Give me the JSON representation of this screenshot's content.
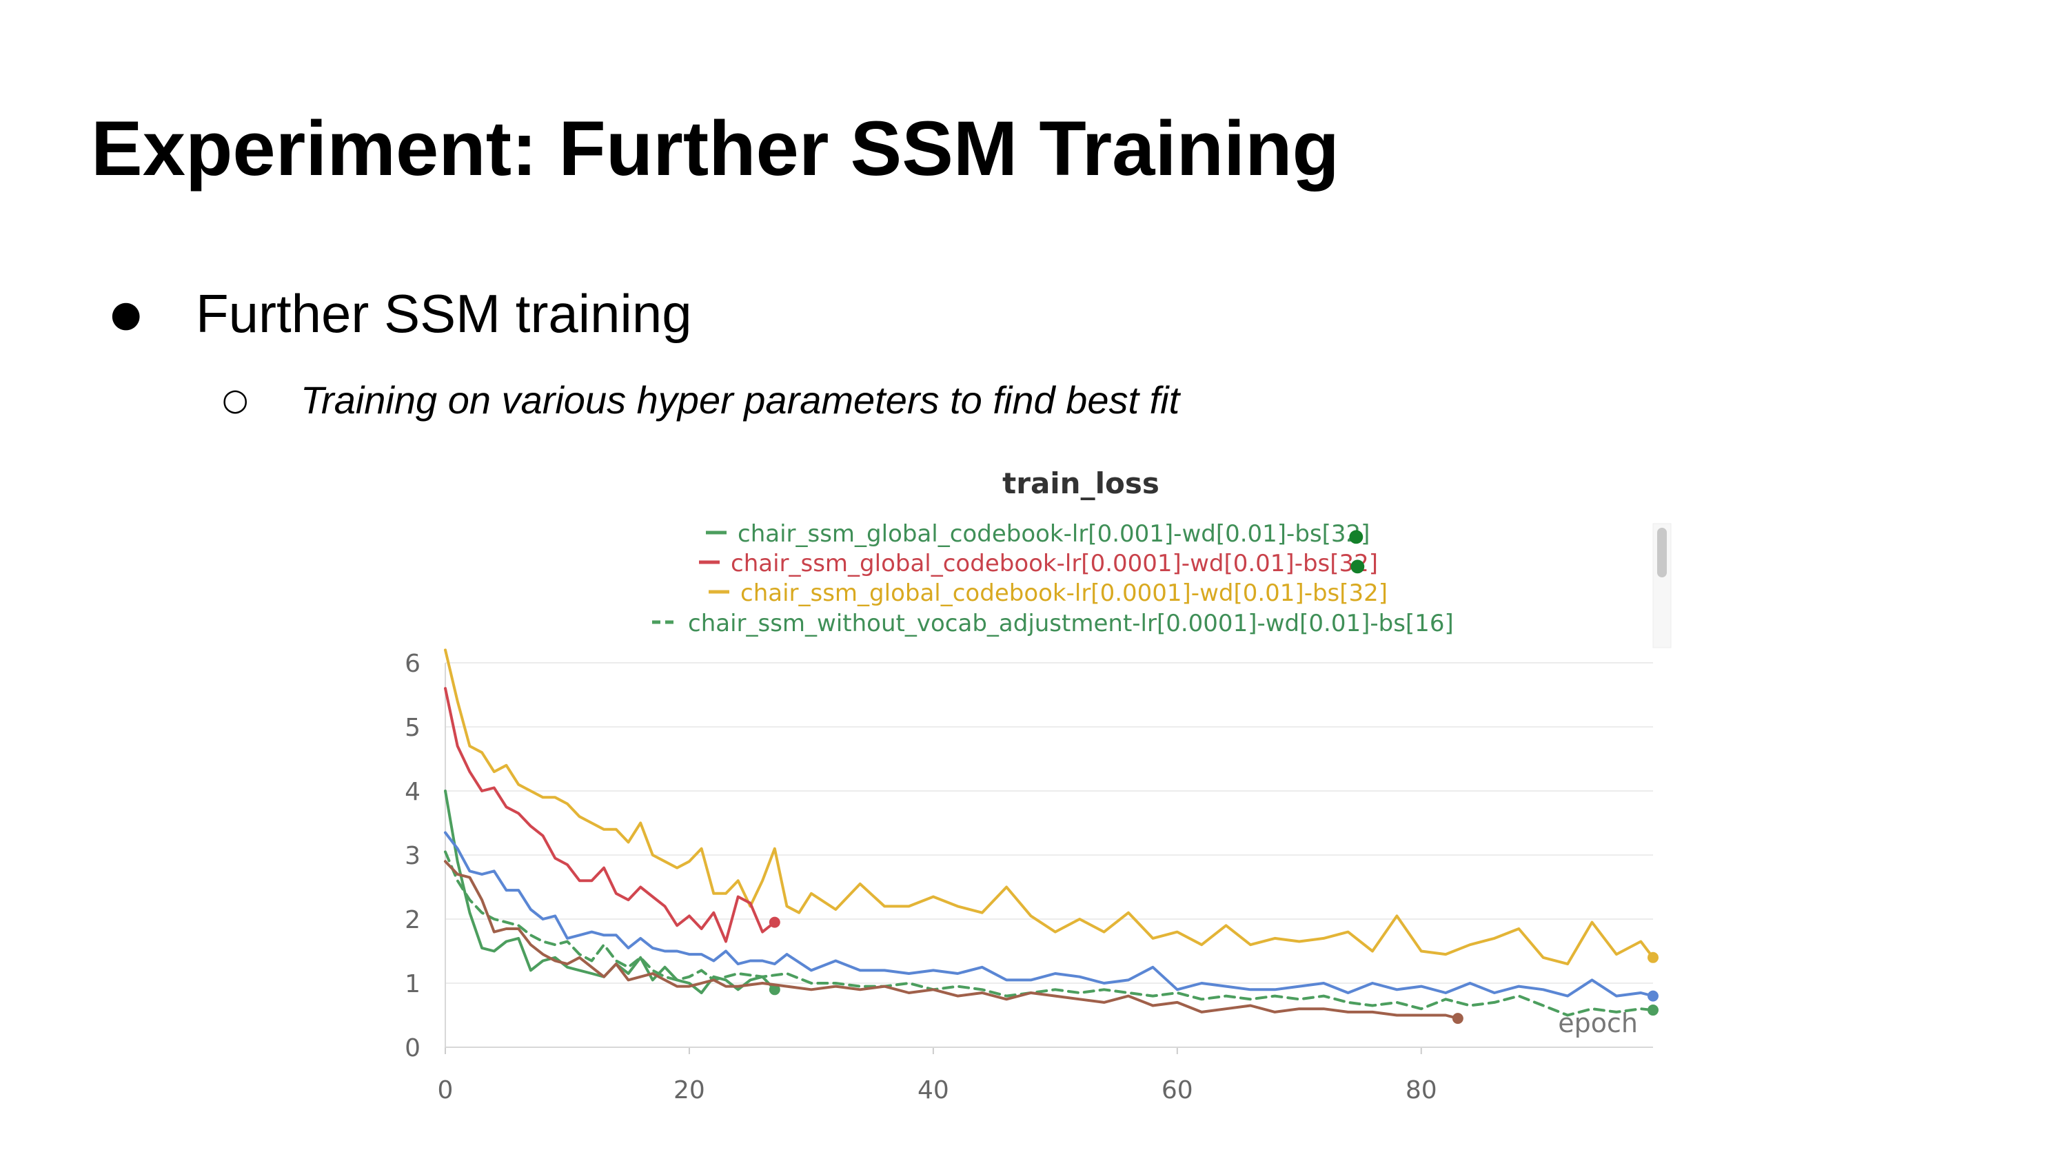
{
  "slide": {
    "title": "Experiment: Further SSM Training",
    "bullets": [
      {
        "marker": "●",
        "text": "Further SSM training"
      },
      {
        "marker": "○",
        "text": "Training on various hyper parameters to find best fit"
      }
    ]
  },
  "chart_data": {
    "type": "line",
    "title": "train_loss",
    "xlabel": "epoch",
    "ylabel": "",
    "xlim": [
      0,
      99
    ],
    "ylim": [
      0,
      6
    ],
    "xticks": [
      0,
      20,
      40,
      60,
      80
    ],
    "yticks": [
      0,
      1,
      2,
      3,
      4,
      5,
      6
    ],
    "grid": true,
    "legend_position": "top",
    "legend_entries": [
      {
        "name": "chair_ssm_global_codebook-lr[0.001]-wd[0.01]-bs[32]",
        "marker": "●",
        "color": "#4c9e5e",
        "style": "solid"
      },
      {
        "name": "chair_ssm_global_codebook-lr[0.0001]-wd[0.01]-bs[32]",
        "marker": "●",
        "color": "#d1464f",
        "style": "solid"
      },
      {
        "name": "chair_ssm_global_codebook-lr[0.0001]-wd[0.01]-bs[32]",
        "marker": "",
        "color": "#e3b436",
        "style": "solid"
      },
      {
        "name": "chair_ssm_without_vocab_adjustment-lr[0.0001]-wd[0.01]-bs[16]",
        "marker": "",
        "color": "#4c9e5e",
        "style": "dashed"
      }
    ],
    "series": [
      {
        "color": "#e3b436",
        "style": "solid",
        "end_marker": true,
        "x": [
          0,
          1,
          2,
          3,
          4,
          5,
          6,
          7,
          8,
          9,
          10,
          11,
          12,
          13,
          14,
          15,
          16,
          17,
          18,
          19,
          20,
          21,
          22,
          23,
          24,
          25,
          26,
          27,
          28,
          29,
          30,
          32,
          34,
          36,
          38,
          40,
          42,
          44,
          46,
          48,
          50,
          52,
          54,
          56,
          58,
          60,
          62,
          64,
          66,
          68,
          70,
          72,
          74,
          76,
          78,
          80,
          82,
          84,
          86,
          88,
          90,
          92,
          94,
          96,
          98,
          99
        ],
        "y": [
          6.2,
          5.4,
          4.7,
          4.6,
          4.3,
          4.4,
          4.1,
          4.0,
          3.9,
          3.9,
          3.8,
          3.6,
          3.5,
          3.4,
          3.4,
          3.2,
          3.5,
          3.0,
          2.9,
          2.8,
          2.9,
          3.1,
          2.4,
          2.4,
          2.6,
          2.2,
          2.6,
          3.1,
          2.2,
          2.1,
          2.4,
          2.15,
          2.55,
          2.2,
          2.2,
          2.35,
          2.2,
          2.1,
          2.5,
          2.05,
          1.8,
          2.0,
          1.8,
          2.1,
          1.7,
          1.8,
          1.6,
          1.9,
          1.6,
          1.7,
          1.65,
          1.7,
          1.8,
          1.5,
          2.05,
          1.5,
          1.45,
          1.6,
          1.7,
          1.85,
          1.4,
          1.3,
          1.95,
          1.45,
          1.65,
          1.4
        ]
      },
      {
        "color": "#d1464f",
        "style": "solid",
        "end_marker": true,
        "x": [
          0,
          1,
          2,
          3,
          4,
          5,
          6,
          7,
          8,
          9,
          10,
          11,
          12,
          13,
          14,
          15,
          16,
          17,
          18,
          19,
          20,
          21,
          22,
          23,
          24,
          25,
          26,
          27
        ],
        "y": [
          5.6,
          4.7,
          4.3,
          4.0,
          4.05,
          3.75,
          3.65,
          3.45,
          3.3,
          2.95,
          2.85,
          2.6,
          2.6,
          2.8,
          2.4,
          2.3,
          2.5,
          2.35,
          2.2,
          1.9,
          2.05,
          1.85,
          2.1,
          1.65,
          2.35,
          2.25,
          1.8,
          1.95
        ]
      },
      {
        "color": "#4c9e5e",
        "style": "solid",
        "end_marker": true,
        "x": [
          0,
          1,
          2,
          3,
          4,
          5,
          6,
          7,
          8,
          9,
          10,
          11,
          12,
          13,
          14,
          15,
          16,
          17,
          18,
          19,
          20,
          21,
          22,
          23,
          24,
          25,
          26,
          27
        ],
        "y": [
          4.0,
          2.9,
          2.1,
          1.55,
          1.5,
          1.65,
          1.7,
          1.2,
          1.35,
          1.4,
          1.25,
          1.2,
          1.15,
          1.1,
          1.3,
          1.15,
          1.4,
          1.05,
          1.25,
          1.05,
          1.0,
          0.85,
          1.1,
          1.05,
          0.9,
          1.05,
          1.1,
          0.9
        ]
      },
      {
        "color": "#5a86d4",
        "style": "solid",
        "end_marker": true,
        "x": [
          0,
          1,
          2,
          3,
          4,
          5,
          6,
          7,
          8,
          9,
          10,
          11,
          12,
          13,
          14,
          15,
          16,
          17,
          18,
          19,
          20,
          21,
          22,
          23,
          24,
          25,
          26,
          27,
          28,
          30,
          32,
          34,
          36,
          38,
          40,
          42,
          44,
          46,
          48,
          50,
          52,
          54,
          56,
          58,
          60,
          62,
          64,
          66,
          68,
          70,
          72,
          74,
          76,
          78,
          80,
          82,
          84,
          86,
          88,
          90,
          92,
          94,
          96,
          98,
          99
        ],
        "y": [
          3.35,
          3.1,
          2.75,
          2.7,
          2.75,
          2.45,
          2.45,
          2.15,
          2.0,
          2.05,
          1.7,
          1.75,
          1.8,
          1.75,
          1.75,
          1.55,
          1.7,
          1.55,
          1.5,
          1.5,
          1.45,
          1.45,
          1.35,
          1.5,
          1.3,
          1.35,
          1.35,
          1.3,
          1.45,
          1.2,
          1.35,
          1.2,
          1.2,
          1.15,
          1.2,
          1.15,
          1.25,
          1.05,
          1.05,
          1.15,
          1.1,
          1.0,
          1.05,
          1.25,
          0.9,
          1.0,
          0.95,
          0.9,
          0.9,
          0.95,
          1.0,
          0.85,
          1.0,
          0.9,
          0.95,
          0.85,
          1.0,
          0.85,
          0.95,
          0.9,
          0.8,
          1.05,
          0.8,
          0.85,
          0.8
        ]
      },
      {
        "color": "#4c9e5e",
        "style": "dashed",
        "end_marker": true,
        "x": [
          0,
          1,
          2,
          3,
          4,
          5,
          6,
          7,
          8,
          9,
          10,
          11,
          12,
          13,
          14,
          15,
          16,
          17,
          18,
          19,
          20,
          21,
          22,
          24,
          26,
          28,
          30,
          32,
          34,
          36,
          38,
          40,
          42,
          44,
          46,
          48,
          50,
          52,
          54,
          56,
          58,
          60,
          62,
          64,
          66,
          68,
          70,
          72,
          74,
          76,
          78,
          80,
          82,
          84,
          86,
          88,
          90,
          92,
          94,
          96,
          98,
          99
        ],
        "y": [
          3.05,
          2.6,
          2.3,
          2.1,
          2.0,
          1.95,
          1.9,
          1.75,
          1.65,
          1.6,
          1.65,
          1.45,
          1.35,
          1.6,
          1.35,
          1.25,
          1.4,
          1.2,
          1.1,
          1.05,
          1.1,
          1.2,
          1.05,
          1.15,
          1.1,
          1.15,
          1.0,
          1.0,
          0.95,
          0.95,
          1.0,
          0.9,
          0.95,
          0.9,
          0.8,
          0.85,
          0.9,
          0.85,
          0.9,
          0.85,
          0.8,
          0.85,
          0.75,
          0.8,
          0.75,
          0.8,
          0.75,
          0.8,
          0.7,
          0.65,
          0.7,
          0.6,
          0.75,
          0.65,
          0.7,
          0.8,
          0.65,
          0.5,
          0.6,
          0.55,
          0.6,
          0.58
        ]
      },
      {
        "color": "#a0604a",
        "style": "solid",
        "end_marker": true,
        "x": [
          0,
          1,
          2,
          3,
          4,
          5,
          6,
          7,
          8,
          9,
          10,
          11,
          12,
          13,
          14,
          15,
          16,
          17,
          18,
          19,
          20,
          21,
          22,
          23,
          24,
          26,
          28,
          30,
          32,
          34,
          36,
          38,
          40,
          42,
          44,
          46,
          48,
          50,
          52,
          54,
          56,
          58,
          60,
          62,
          64,
          66,
          68,
          70,
          72,
          74,
          76,
          78,
          80,
          82,
          83
        ],
        "y": [
          2.9,
          2.7,
          2.65,
          2.3,
          1.8,
          1.85,
          1.85,
          1.6,
          1.45,
          1.35,
          1.3,
          1.4,
          1.25,
          1.1,
          1.3,
          1.05,
          1.1,
          1.15,
          1.05,
          0.95,
          0.95,
          1.0,
          1.05,
          0.95,
          0.95,
          1.0,
          0.95,
          0.9,
          0.95,
          0.9,
          0.95,
          0.85,
          0.9,
          0.8,
          0.85,
          0.75,
          0.85,
          0.8,
          0.75,
          0.7,
          0.8,
          0.65,
          0.7,
          0.55,
          0.6,
          0.65,
          0.55,
          0.6,
          0.6,
          0.55,
          0.55,
          0.5,
          0.5,
          0.5,
          0.45
        ]
      }
    ]
  }
}
